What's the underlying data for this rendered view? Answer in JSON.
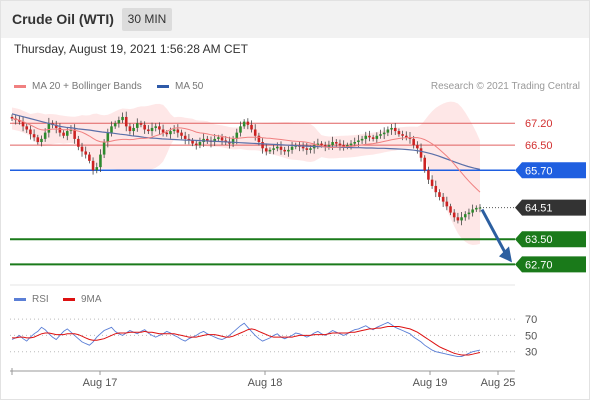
{
  "header": {
    "title": "Crude Oil (WTI)",
    "timeframe": "30 MIN"
  },
  "timestamp": "Thursday, August 19, 2021 1:56:28 AM CET",
  "credit": "Research © 2021 Trading Central",
  "legend": [
    {
      "label": "MA 20 + Bollinger Bands",
      "color": "#f08080"
    },
    {
      "label": "MA 50",
      "color": "#2e5aa8"
    }
  ],
  "rsi_legend": [
    {
      "label": "RSI",
      "color": "#5b7fd6"
    },
    {
      "label": "9MA",
      "color": "#dd1111"
    }
  ],
  "chart_data": [
    {
      "type": "candlestick",
      "title": "Crude Oil (WTI) 30 MIN",
      "x_ticks": [
        "Aug 17",
        "Aug 18",
        "Aug 19",
        "Aug 25"
      ],
      "ylim": [
        62.2,
        68.1
      ],
      "current_price": 64.51,
      "levels": [
        {
          "label": "67.20",
          "value": 67.2,
          "kind": "resistance",
          "color": "#e06060"
        },
        {
          "label": "66.50",
          "value": 66.5,
          "kind": "resistance",
          "color": "#e06060"
        },
        {
          "label": "65.70",
          "value": 65.7,
          "kind": "pivot",
          "color": "#1f5fe0"
        },
        {
          "label": "64.51",
          "value": 64.51,
          "kind": "last",
          "color": "#333333"
        },
        {
          "label": "63.50",
          "value": 63.5,
          "kind": "support",
          "color": "#1a7a1a"
        },
        {
          "label": "62.70",
          "value": 62.7,
          "kind": "support",
          "color": "#1a7a1a"
        }
      ],
      "close_series": [
        67.35,
        67.3,
        67.25,
        67.1,
        67.0,
        66.85,
        66.75,
        66.6,
        66.7,
        66.9,
        67.2,
        67.15,
        67.05,
        66.9,
        66.8,
        66.95,
        67.0,
        66.7,
        66.45,
        66.3,
        66.2,
        66.0,
        65.7,
        65.8,
        66.2,
        66.6,
        66.9,
        67.1,
        67.2,
        67.3,
        67.4,
        67.1,
        66.95,
        67.05,
        67.2,
        67.15,
        67.0,
        66.95,
        67.05,
        67.1,
        67.0,
        66.9,
        66.85,
        66.95,
        67.0,
        66.9,
        66.8,
        66.7,
        66.65,
        66.55,
        66.5,
        66.6,
        66.7,
        66.65,
        66.6,
        66.7,
        66.75,
        66.65,
        66.6,
        66.55,
        66.7,
        66.9,
        67.1,
        67.25,
        67.15,
        67.0,
        66.8,
        66.6,
        66.4,
        66.3,
        66.35,
        66.4,
        66.45,
        66.35,
        66.3,
        66.35,
        66.45,
        66.5,
        66.45,
        66.4,
        66.35,
        66.4,
        66.5,
        66.55,
        66.5,
        66.45,
        66.5,
        66.6,
        66.55,
        66.5,
        66.45,
        66.5,
        66.55,
        66.6,
        66.65,
        66.7,
        66.8,
        66.75,
        66.7,
        66.8,
        66.85,
        66.9,
        67.0,
        67.05,
        66.95,
        66.85,
        66.8,
        66.75,
        66.7,
        66.5,
        66.4,
        66.1,
        65.7,
        65.4,
        65.2,
        65.0,
        64.85,
        64.7,
        64.55,
        64.35,
        64.2,
        64.1,
        64.2,
        64.3,
        64.35,
        64.45,
        64.5,
        64.51
      ],
      "ma50_series": [
        67.5,
        67.45,
        67.4,
        67.35,
        67.3,
        67.25,
        67.2,
        67.15,
        67.1,
        67.07,
        67.05,
        67.02,
        67.0,
        66.98,
        66.95,
        66.92,
        66.9,
        66.88,
        66.85,
        66.83,
        66.8,
        66.78,
        66.75,
        66.73,
        66.72,
        66.7,
        66.69,
        66.68,
        66.67,
        66.66,
        66.66,
        66.65,
        66.64,
        66.63,
        66.62,
        66.61,
        66.6,
        66.59,
        66.58,
        66.57,
        66.56,
        66.55,
        66.54,
        66.53,
        66.52,
        66.51,
        66.5,
        66.49,
        66.48,
        66.47,
        66.46,
        66.45,
        66.45,
        66.44,
        66.44,
        66.43,
        66.43,
        66.42,
        66.42,
        66.41,
        66.41,
        66.4,
        66.4,
        66.39,
        66.38,
        66.37,
        66.36,
        66.34,
        66.31,
        66.27,
        66.22,
        66.16,
        66.09,
        66.02,
        65.95,
        65.88,
        65.82,
        65.77,
        65.73
      ],
      "projection_arrow": {
        "from": 64.51,
        "to": 62.7
      }
    },
    {
      "type": "line",
      "title": "RSI",
      "y_ticks": [
        70,
        50,
        30
      ],
      "ylim": [
        10,
        80
      ],
      "series": [
        {
          "name": "RSI",
          "values": [
            45,
            47,
            50,
            46,
            43,
            48,
            52,
            55,
            60,
            57,
            52,
            48,
            45,
            50,
            55,
            58,
            54,
            50,
            46,
            42,
            40,
            38,
            42,
            48,
            52,
            56,
            58,
            60,
            55,
            52,
            50,
            53,
            56,
            54,
            52,
            55,
            57,
            53,
            50,
            48,
            50,
            52,
            55,
            53,
            50,
            48,
            45,
            43,
            46,
            48,
            50,
            53,
            55,
            52,
            50,
            48,
            46,
            45,
            47,
            50,
            54,
            58,
            62,
            65,
            60,
            55,
            50,
            46,
            43,
            45,
            47,
            50,
            52,
            48,
            46,
            48,
            50,
            53,
            52,
            50,
            48,
            50,
            53,
            55,
            52,
            50,
            53,
            56,
            54,
            52,
            50,
            52,
            55,
            57,
            58,
            60,
            62,
            59,
            57,
            60,
            62,
            64,
            66,
            63,
            60,
            58,
            56,
            54,
            52,
            48,
            45,
            42,
            38,
            35,
            32,
            30,
            29,
            28,
            27,
            26,
            25,
            24,
            24,
            26,
            28,
            30,
            31,
            32
          ]
        },
        {
          "name": "9MA",
          "values": [
            47,
            47,
            48,
            48,
            47,
            47,
            48,
            50,
            52,
            53,
            53,
            52,
            51,
            51,
            51,
            52,
            52,
            52,
            51,
            49,
            47,
            45,
            44,
            44,
            45,
            46,
            48,
            50,
            52,
            53,
            53,
            53,
            54,
            54,
            54,
            54,
            55,
            54,
            54,
            53,
            52,
            52,
            52,
            52,
            52,
            51,
            50,
            49,
            48,
            48,
            48,
            49,
            50,
            51,
            51,
            51,
            50,
            49,
            48,
            48,
            49,
            51,
            53,
            55,
            57,
            58,
            57,
            55,
            53,
            51,
            49,
            48,
            48,
            48,
            48,
            48,
            48,
            49,
            50,
            50,
            50,
            50,
            51,
            51,
            51,
            51,
            52,
            53,
            53,
            53,
            53,
            53,
            54,
            54,
            55,
            56,
            57,
            58,
            58,
            59,
            59,
            60,
            61,
            61,
            61,
            61,
            60,
            59,
            58,
            56,
            54,
            51,
            48,
            45,
            42,
            39,
            36,
            34,
            32,
            30,
            28,
            27,
            26,
            26,
            26,
            27,
            28,
            29
          ]
        }
      ]
    }
  ]
}
